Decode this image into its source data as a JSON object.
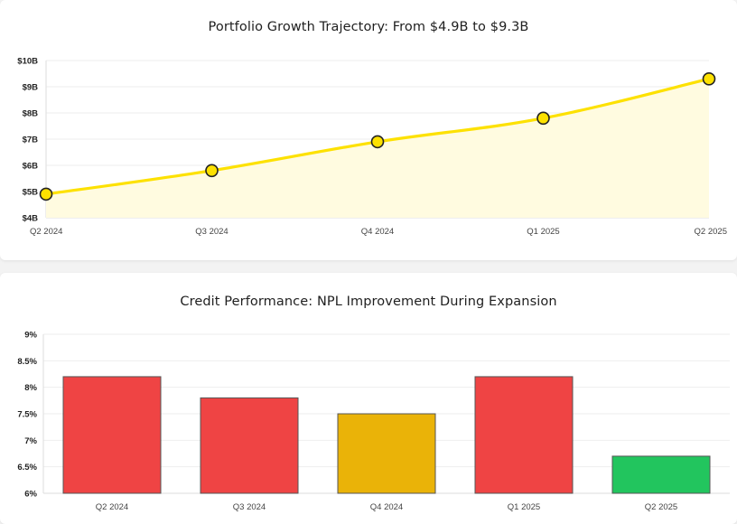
{
  "chart_data": [
    {
      "type": "line",
      "title": "Portfolio Growth Trajectory: From $4.9B to $9.3B",
      "categories": [
        "Q2 2024",
        "Q3 2024",
        "Q4 2024",
        "Q1 2025",
        "Q2 2025"
      ],
      "values": [
        4.9,
        5.8,
        6.9,
        7.8,
        9.3
      ],
      "ylim": [
        4,
        10
      ],
      "yticks": [
        "$4B",
        "$5B",
        "$6B",
        "$7B",
        "$8B",
        "$9B",
        "$10B"
      ],
      "grid": true,
      "fill_area": true,
      "colors": {
        "line": "#fde100",
        "marker": "#fde100",
        "marker_stroke": "#222222",
        "fill": "#fffbe0"
      }
    },
    {
      "type": "bar",
      "title": "Credit Performance: NPL Improvement During Expansion",
      "categories": [
        "Q2 2024",
        "Q3 2024",
        "Q4 2024",
        "Q1 2025",
        "Q2 2025"
      ],
      "values": [
        8.2,
        7.8,
        7.5,
        8.2,
        6.7
      ],
      "ylim": [
        6,
        9
      ],
      "yticks": [
        "6%",
        "6.5%",
        "7%",
        "7.5%",
        "8%",
        "8.5%",
        "9%"
      ],
      "grid": true,
      "bar_colors": [
        "#ef4444",
        "#ef4444",
        "#eab308",
        "#ef4444",
        "#22c55e"
      ]
    }
  ]
}
